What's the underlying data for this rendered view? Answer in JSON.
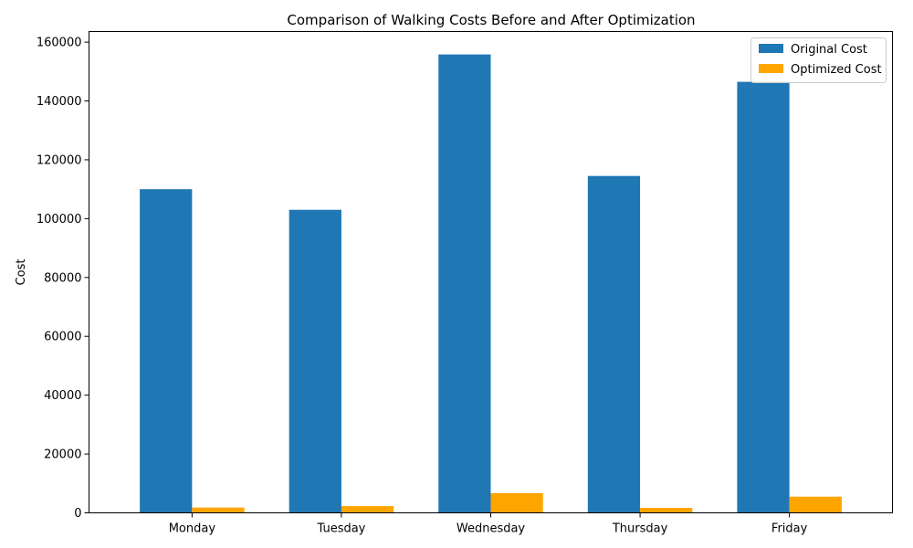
{
  "chart_data": {
    "type": "bar",
    "title": "Comparison of Walking Costs Before and After Optimization",
    "xlabel": "",
    "ylabel": "Cost",
    "categories": [
      "Monday",
      "Tuesday",
      "Wednesday",
      "Thursday",
      "Friday"
    ],
    "series": [
      {
        "name": "Original Cost",
        "color": "#1f77b4",
        "values": [
          110000,
          103000,
          155800,
          114500,
          146500
        ]
      },
      {
        "name": "Optimized Cost",
        "color": "#ffa500",
        "values": [
          1800,
          2300,
          6700,
          1700,
          5500
        ]
      }
    ],
    "ylim": [
      0,
      163600
    ],
    "yticks": [
      0,
      20000,
      40000,
      60000,
      80000,
      100000,
      120000,
      140000,
      160000
    ],
    "ytick_labels": [
      "0",
      "20000",
      "40000",
      "60000",
      "80000",
      "100000",
      "120000",
      "140000",
      "160000"
    ],
    "grid": false,
    "legend_position": "top-right"
  }
}
